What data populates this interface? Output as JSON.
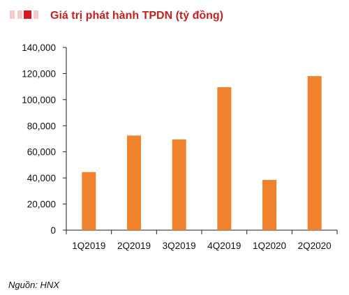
{
  "colors": {
    "bar": "#F0822D",
    "title": "#C8201F",
    "axis": "#222222",
    "marker_dark": "#D9181F",
    "marker_light": "#F2B4B4"
  },
  "chart_data": {
    "type": "bar",
    "title": "Giá trị phát hành TPDN (tỷ đồng)",
    "categories": [
      "1Q2019",
      "2Q2019",
      "3Q2019",
      "4Q2019",
      "1Q2020",
      "2Q2020"
    ],
    "values": [
      44500,
      72500,
      69500,
      109500,
      38500,
      118000
    ],
    "ylim": [
      0,
      140000
    ],
    "yticks": [
      0,
      20000,
      40000,
      60000,
      80000,
      100000,
      120000,
      140000
    ],
    "ytick_labels": [
      "0",
      "20,000",
      "40,000",
      "60,000",
      "80,000",
      "100,000",
      "120,000",
      "140,000"
    ],
    "xlabel": "",
    "ylabel": "",
    "grid": false,
    "legend": "none"
  },
  "source": "Nguồn: HNX"
}
